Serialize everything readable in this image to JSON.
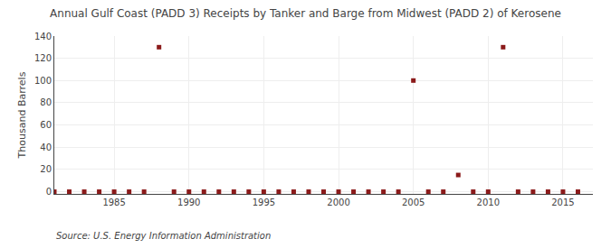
{
  "chart_data": {
    "type": "scatter",
    "title": "Annual Gulf Coast (PADD 3) Receipts by Tanker and Barge from Midwest (PADD 2) of Kerosene",
    "ylabel": "Thousand Barrels",
    "annotations": [
      "Source: U.S. Energy Information Administration"
    ],
    "x": [
      1981,
      1982,
      1983,
      1984,
      1985,
      1986,
      1987,
      1988,
      1989,
      1990,
      1991,
      1992,
      1993,
      1994,
      1995,
      1996,
      1997,
      1998,
      1999,
      2000,
      2001,
      2002,
      2003,
      2004,
      2005,
      2006,
      2007,
      2008,
      2009,
      2010,
      2011,
      2012,
      2013,
      2014,
      2015,
      2016
    ],
    "values": [
      0,
      0,
      0,
      0,
      0,
      0,
      0,
      130,
      0,
      0,
      0,
      0,
      0,
      0,
      0,
      0,
      0,
      0,
      0,
      0,
      0,
      0,
      0,
      0,
      100,
      0,
      0,
      15,
      0,
      0,
      130,
      0,
      0,
      0,
      0,
      0
    ],
    "color": "#8b1a1a",
    "marker": "square",
    "xlim": [
      1981,
      2017
    ],
    "ylim": [
      -2,
      140
    ],
    "xticks": [
      1985,
      1990,
      1995,
      2000,
      2005,
      2010,
      2015
    ],
    "yticks": [
      0,
      20,
      40,
      60,
      80,
      100,
      120,
      140
    ],
    "grid": true
  }
}
